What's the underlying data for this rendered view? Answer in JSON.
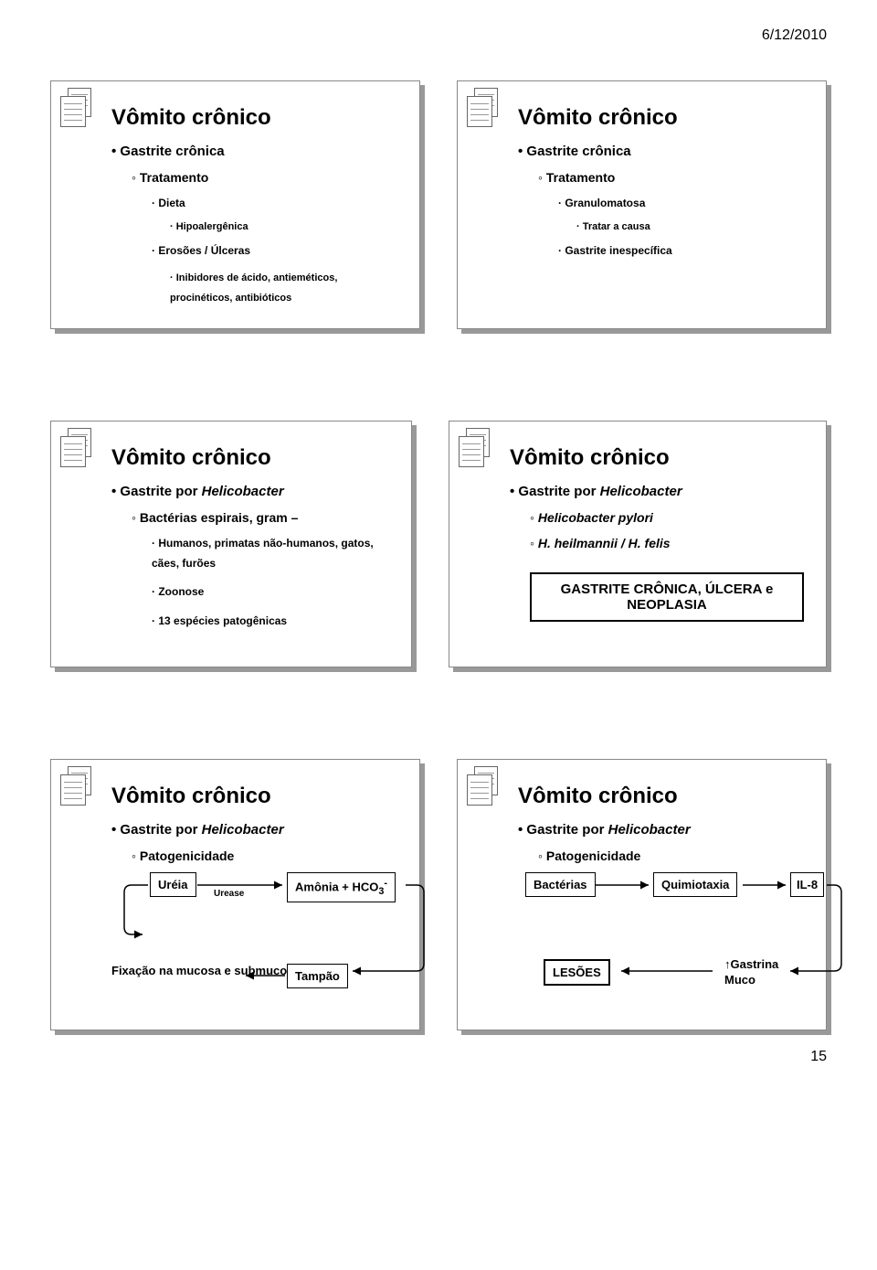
{
  "date_header": "6/12/2010",
  "page_number": "15",
  "common": {
    "title": "Vômito crônico",
    "notebook_color": "#666666"
  },
  "slide1": {
    "b1": "Gastrite crônica",
    "b2": "Tratamento",
    "b3a": "Dieta",
    "b4a": "Hipoalergênica",
    "b3b": "Erosões / Úlceras",
    "b4b": "Inibidores de ácido, antieméticos, procinéticos, antibióticos"
  },
  "slide2": {
    "b1": "Gastrite crônica",
    "b2": "Tratamento",
    "b3a": "Granulomatosa",
    "b4a": "Tratar a causa",
    "b3b": "Gastrite inespecífica"
  },
  "slide3": {
    "b1": "Gastrite por",
    "b1i": "Helicobacter",
    "b2": "Bactérias espirais, gram –",
    "b3a": "Humanos, primatas não-humanos, gatos, cães, furões",
    "b3b": "Zoonose",
    "b3c": "13 espécies patogênicas"
  },
  "slide4": {
    "b1": "Gastrite por",
    "b1i": "Helicobacter",
    "b2": "Helicobacter pylori",
    "b2b": "H. heilmannii / H. felis",
    "box": "GASTRITE CRÔNICA, ÚLCERA e NEOPLASIA"
  },
  "slide5": {
    "b1": "Gastrite por",
    "b1i": "Helicobacter",
    "b2": "Patogenicidade",
    "ureia": "Uréia",
    "urease": "Urease",
    "amonia_html": "Amônia + HCO<sub>3</sub><sup>-</sup>",
    "fix": "Fixação na mucosa e submucosa",
    "tampao": "Tampão",
    "arrow_color": "#000000"
  },
  "slide6": {
    "b1": "Gastrite por",
    "b1i": "Helicobacter",
    "b2": "Patogenicidade",
    "bacterias": "Bactérias",
    "quimio": "Quimiotaxia",
    "il8": "IL-8",
    "lesoes": "LESÕES",
    "gastrina_html": "↑Gastrina<br>Muco"
  }
}
